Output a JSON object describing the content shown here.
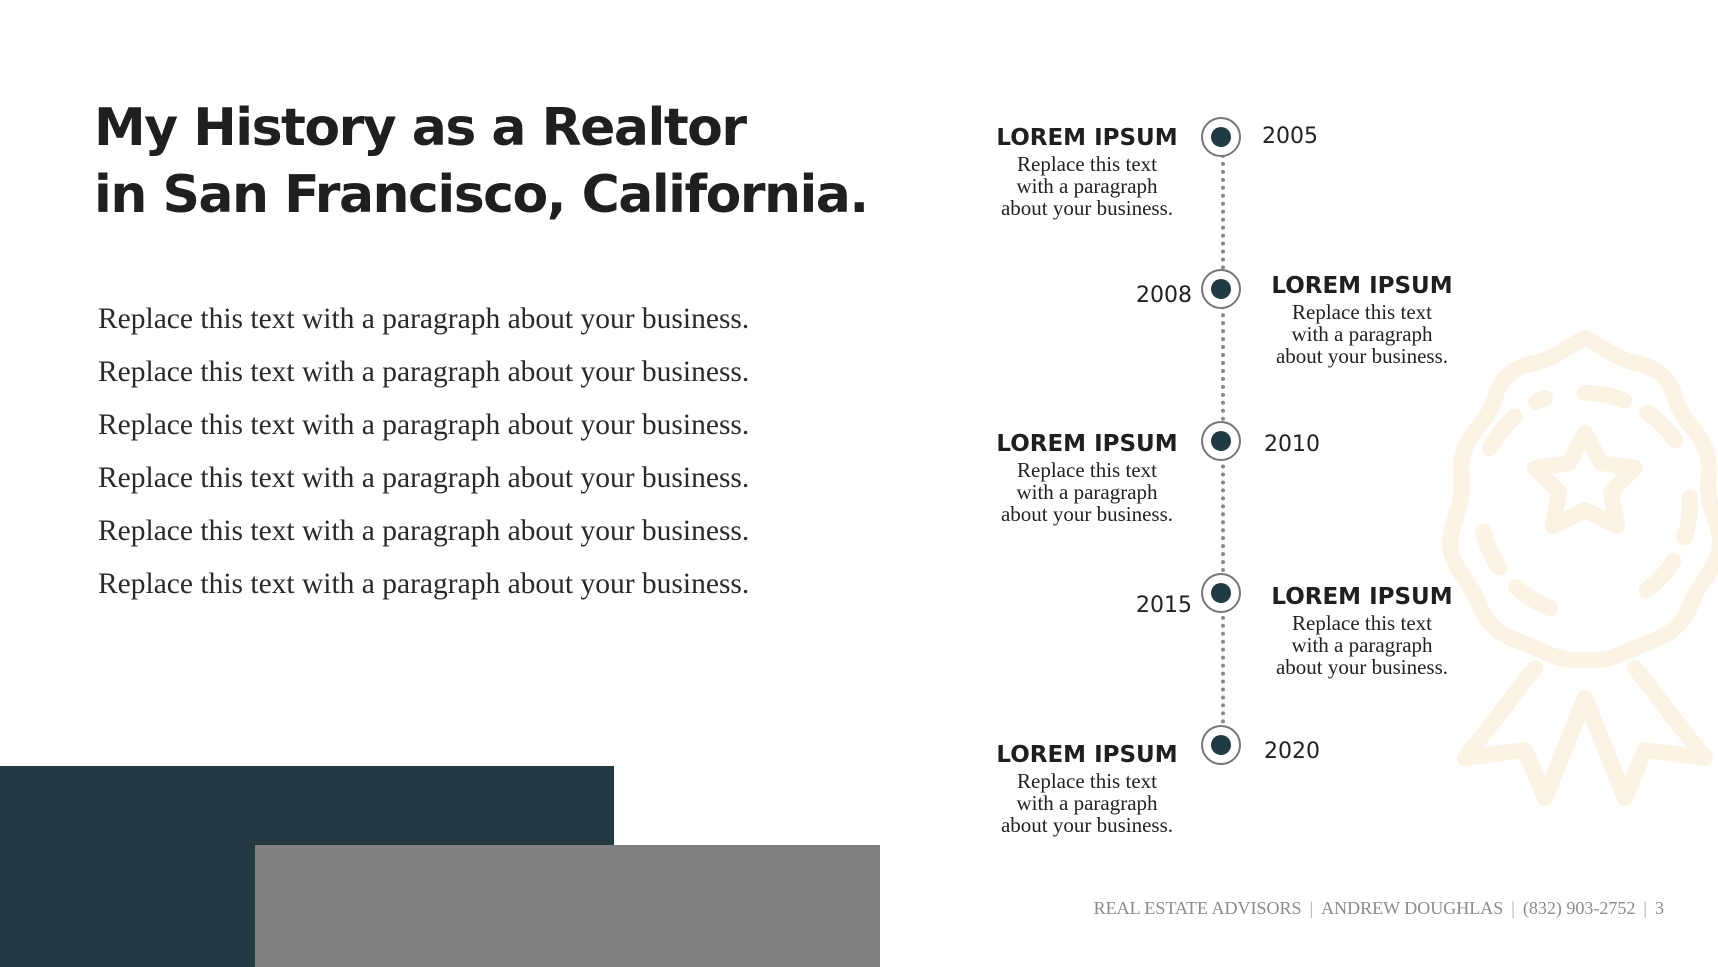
{
  "title": {
    "line1": "My History as a Realtor",
    "line2": "in San Francisco, California."
  },
  "paragraphs": [
    "Replace this text with a paragraph about your business.",
    "Replace this text with a paragraph about your business.",
    "Replace this text with a paragraph about your business.",
    "Replace this text with a paragraph about your business.",
    "Replace this text with a paragraph about your business.",
    "Replace this text with a paragraph about your business."
  ],
  "timeline": [
    {
      "year": "2005",
      "heading": "LOREM IPSUM",
      "lines": [
        "Replace this text",
        "with a paragraph",
        "about your business."
      ]
    },
    {
      "year": "2008",
      "heading": "LOREM IPSUM",
      "lines": [
        "Replace this text",
        "with a paragraph",
        "about your business."
      ]
    },
    {
      "year": "2010",
      "heading": "LOREM IPSUM",
      "lines": [
        "Replace this text",
        "with a paragraph",
        "about your business."
      ]
    },
    {
      "year": "2015",
      "heading": "LOREM IPSUM",
      "lines": [
        "Replace this text",
        "with a paragraph",
        "about your business."
      ]
    },
    {
      "year": "2020",
      "heading": "LOREM IPSUM",
      "lines": [
        "Replace this text",
        "with a paragraph",
        "about your business."
      ]
    }
  ],
  "footer": {
    "company": "REAL ESTATE ADVISORS",
    "name": "ANDREW DOUGHLAS",
    "phone": "(832) 903-2752",
    "page": "3"
  },
  "colors": {
    "dark_block": "#233a43",
    "gray_block": "#808080",
    "node_dot": "#223a44",
    "badge_watermark": "#fbf3e3"
  },
  "icons": [
    "award-ribbon-icon"
  ]
}
